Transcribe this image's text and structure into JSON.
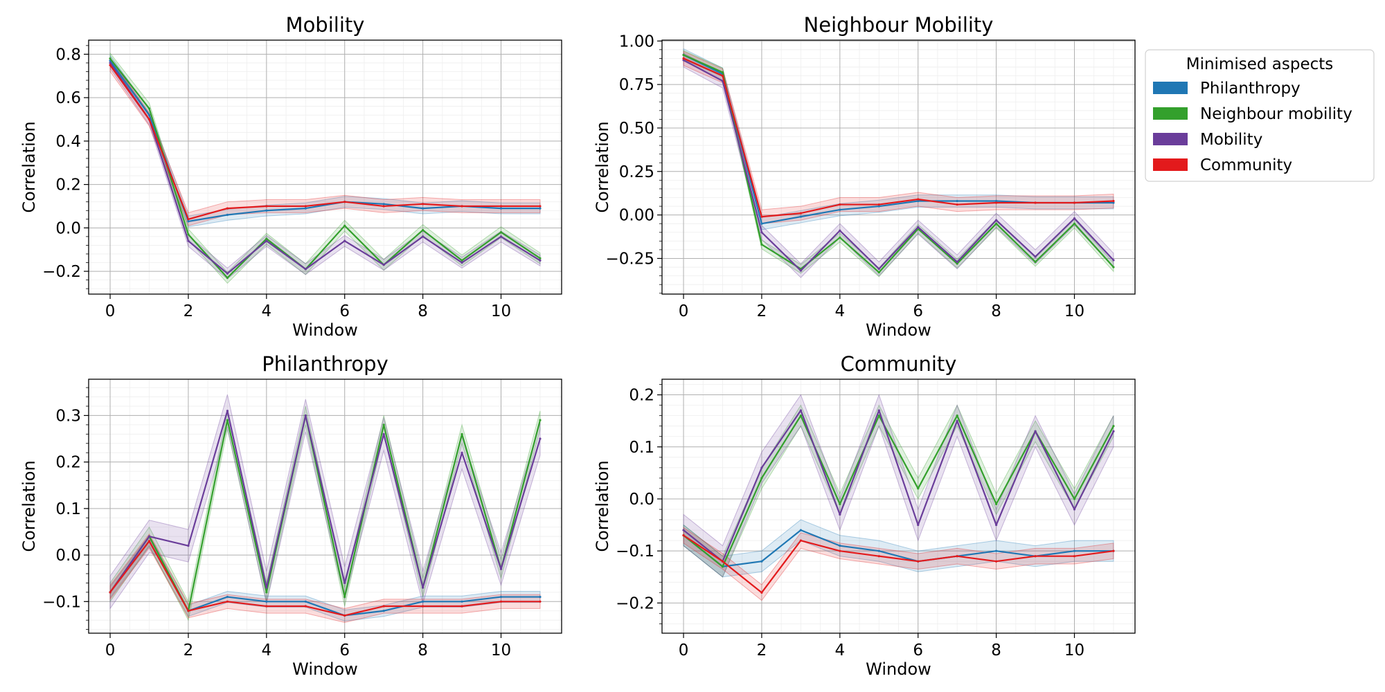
{
  "legend": {
    "title": "Minimised aspects",
    "entries": [
      {
        "label": "Philanthropy",
        "color": "#1f77b4"
      },
      {
        "label": "Neighbour mobility",
        "color": "#33a02c"
      },
      {
        "label": "Mobility",
        "color": "#6a3d9a"
      },
      {
        "label": "Community",
        "color": "#e31a1c"
      }
    ]
  },
  "chart_data": [
    {
      "type": "line",
      "title": "Mobility",
      "xlabel": "Window",
      "ylabel": "Correlation",
      "xlim": [
        -0.55,
        11.55
      ],
      "ylim": [
        -0.305,
        0.865
      ],
      "xticks": [
        0,
        2,
        4,
        6,
        8,
        10
      ],
      "xtick_labels": [
        "0",
        "2",
        "4",
        "6",
        "8",
        "10"
      ],
      "yticks": [
        -0.2,
        0.0,
        0.2,
        0.4,
        0.6,
        0.8
      ],
      "ytick_labels": [
        "−0.2",
        "0.0",
        "0.2",
        "0.4",
        "0.6",
        "0.8"
      ],
      "grid": true,
      "x": [
        0,
        1,
        2,
        3,
        4,
        5,
        6,
        7,
        8,
        9,
        10,
        11
      ],
      "series": [
        {
          "name": "Philanthropy",
          "color": "#1f77b4",
          "values": [
            0.77,
            0.52,
            0.03,
            0.06,
            0.08,
            0.09,
            0.12,
            0.11,
            0.09,
            0.1,
            0.09,
            0.09
          ],
          "band": 0.025
        },
        {
          "name": "Neighbour mobility",
          "color": "#33a02c",
          "values": [
            0.78,
            0.55,
            -0.03,
            -0.23,
            -0.05,
            -0.19,
            0.01,
            -0.17,
            -0.01,
            -0.15,
            -0.02,
            -0.14
          ],
          "band": 0.025
        },
        {
          "name": "Mobility",
          "color": "#6a3d9a",
          "values": [
            0.76,
            0.5,
            -0.06,
            -0.21,
            -0.06,
            -0.19,
            -0.06,
            -0.17,
            -0.04,
            -0.16,
            -0.04,
            -0.15
          ],
          "band": 0.025
        },
        {
          "name": "Community",
          "color": "#e31a1c",
          "values": [
            0.75,
            0.5,
            0.04,
            0.09,
            0.1,
            0.1,
            0.12,
            0.1,
            0.11,
            0.1,
            0.1,
            0.1
          ],
          "band": 0.03
        }
      ]
    },
    {
      "type": "line",
      "title": "Neighbour Mobility",
      "xlabel": "Window",
      "ylabel": "Correlation",
      "xlim": [
        -0.55,
        11.55
      ],
      "ylim": [
        -0.455,
        1.005
      ],
      "xticks": [
        0,
        2,
        4,
        6,
        8,
        10
      ],
      "xtick_labels": [
        "0",
        "2",
        "4",
        "6",
        "8",
        "10"
      ],
      "yticks": [
        -0.25,
        0.0,
        0.25,
        0.5,
        0.75,
        1.0
      ],
      "ytick_labels": [
        "−0.25",
        "0.00",
        "0.25",
        "0.50",
        "0.75",
        "1.00"
      ],
      "grid": true,
      "x": [
        0,
        1,
        2,
        3,
        4,
        5,
        6,
        7,
        8,
        9,
        10,
        11
      ],
      "series": [
        {
          "name": "Philanthropy",
          "color": "#1f77b4",
          "values": [
            0.92,
            0.81,
            -0.05,
            -0.01,
            0.03,
            0.05,
            0.08,
            0.08,
            0.08,
            0.07,
            0.07,
            0.07
          ],
          "band": 0.035
        },
        {
          "name": "Neighbour mobility",
          "color": "#33a02c",
          "values": [
            0.92,
            0.82,
            -0.17,
            -0.31,
            -0.13,
            -0.33,
            -0.08,
            -0.28,
            -0.05,
            -0.27,
            -0.05,
            -0.3
          ],
          "band": 0.025
        },
        {
          "name": "Mobility",
          "color": "#6a3d9a",
          "values": [
            0.89,
            0.77,
            -0.1,
            -0.32,
            -0.09,
            -0.31,
            -0.07,
            -0.27,
            -0.03,
            -0.24,
            -0.02,
            -0.26
          ],
          "band": 0.04
        },
        {
          "name": "Community",
          "color": "#e31a1c",
          "values": [
            0.9,
            0.8,
            -0.01,
            0.01,
            0.06,
            0.06,
            0.09,
            0.06,
            0.07,
            0.07,
            0.07,
            0.08
          ],
          "band": 0.04
        }
      ]
    },
    {
      "type": "line",
      "title": "Philanthropy",
      "xlabel": "Window",
      "ylabel": "Correlation",
      "xlim": [
        -0.55,
        11.55
      ],
      "ylim": [
        -0.168,
        0.378
      ],
      "xticks": [
        0,
        2,
        4,
        6,
        8,
        10
      ],
      "xtick_labels": [
        "0",
        "2",
        "4",
        "6",
        "8",
        "10"
      ],
      "yticks": [
        -0.1,
        0.0,
        0.1,
        0.2,
        0.3
      ],
      "ytick_labels": [
        "−0.1",
        "0.0",
        "0.1",
        "0.2",
        "0.3"
      ],
      "grid": true,
      "x": [
        0,
        1,
        2,
        3,
        4,
        5,
        6,
        7,
        8,
        9,
        10,
        11
      ],
      "series": [
        {
          "name": "Philanthropy",
          "color": "#1f77b4",
          "values": [
            -0.08,
            0.03,
            -0.12,
            -0.09,
            -0.1,
            -0.1,
            -0.13,
            -0.12,
            -0.1,
            -0.1,
            -0.09,
            -0.09
          ],
          "band": 0.012
        },
        {
          "name": "Neighbour mobility",
          "color": "#33a02c",
          "values": [
            -0.08,
            0.04,
            -0.12,
            0.29,
            -0.08,
            0.3,
            -0.09,
            0.28,
            -0.07,
            0.26,
            -0.03,
            0.29
          ],
          "band": 0.02
        },
        {
          "name": "Mobility",
          "color": "#6a3d9a",
          "values": [
            -0.08,
            0.04,
            0.02,
            0.31,
            -0.07,
            0.3,
            -0.06,
            0.26,
            -0.07,
            0.22,
            -0.03,
            0.25
          ],
          "band": 0.035
        },
        {
          "name": "Community",
          "color": "#e31a1c",
          "values": [
            -0.08,
            0.03,
            -0.12,
            -0.1,
            -0.11,
            -0.11,
            -0.13,
            -0.11,
            -0.11,
            -0.11,
            -0.1,
            -0.1
          ],
          "band": 0.015
        }
      ]
    },
    {
      "type": "line",
      "title": "Community",
      "xlabel": "Window",
      "ylabel": "Correlation",
      "xlim": [
        -0.55,
        11.55
      ],
      "ylim": [
        -0.258,
        0.23
      ],
      "xticks": [
        0,
        2,
        4,
        6,
        8,
        10
      ],
      "xtick_labels": [
        "0",
        "2",
        "4",
        "6",
        "8",
        "10"
      ],
      "yticks": [
        -0.2,
        -0.1,
        0.0,
        0.1,
        0.2
      ],
      "ytick_labels": [
        "−0.2",
        "−0.1",
        "0.0",
        "0.1",
        "0.2"
      ],
      "grid": true,
      "x": [
        0,
        1,
        2,
        3,
        4,
        5,
        6,
        7,
        8,
        9,
        10,
        11
      ],
      "series": [
        {
          "name": "Philanthropy",
          "color": "#1f77b4",
          "values": [
            -0.07,
            -0.13,
            -0.12,
            -0.06,
            -0.09,
            -0.1,
            -0.12,
            -0.11,
            -0.1,
            -0.11,
            -0.1,
            -0.1
          ],
          "band": 0.02
        },
        {
          "name": "Neighbour mobility",
          "color": "#33a02c",
          "values": [
            -0.07,
            -0.13,
            0.04,
            0.16,
            -0.01,
            0.16,
            0.02,
            0.16,
            -0.01,
            0.13,
            0.0,
            0.14
          ],
          "band": 0.02
        },
        {
          "name": "Mobility",
          "color": "#6a3d9a",
          "values": [
            -0.06,
            -0.12,
            0.06,
            0.17,
            -0.03,
            0.17,
            -0.05,
            0.15,
            -0.05,
            0.13,
            -0.02,
            0.13
          ],
          "band": 0.03
        },
        {
          "name": "Community",
          "color": "#e31a1c",
          "values": [
            -0.07,
            -0.12,
            -0.18,
            -0.08,
            -0.1,
            -0.11,
            -0.12,
            -0.11,
            -0.12,
            -0.11,
            -0.11,
            -0.1
          ],
          "band": 0.015
        }
      ]
    }
  ]
}
